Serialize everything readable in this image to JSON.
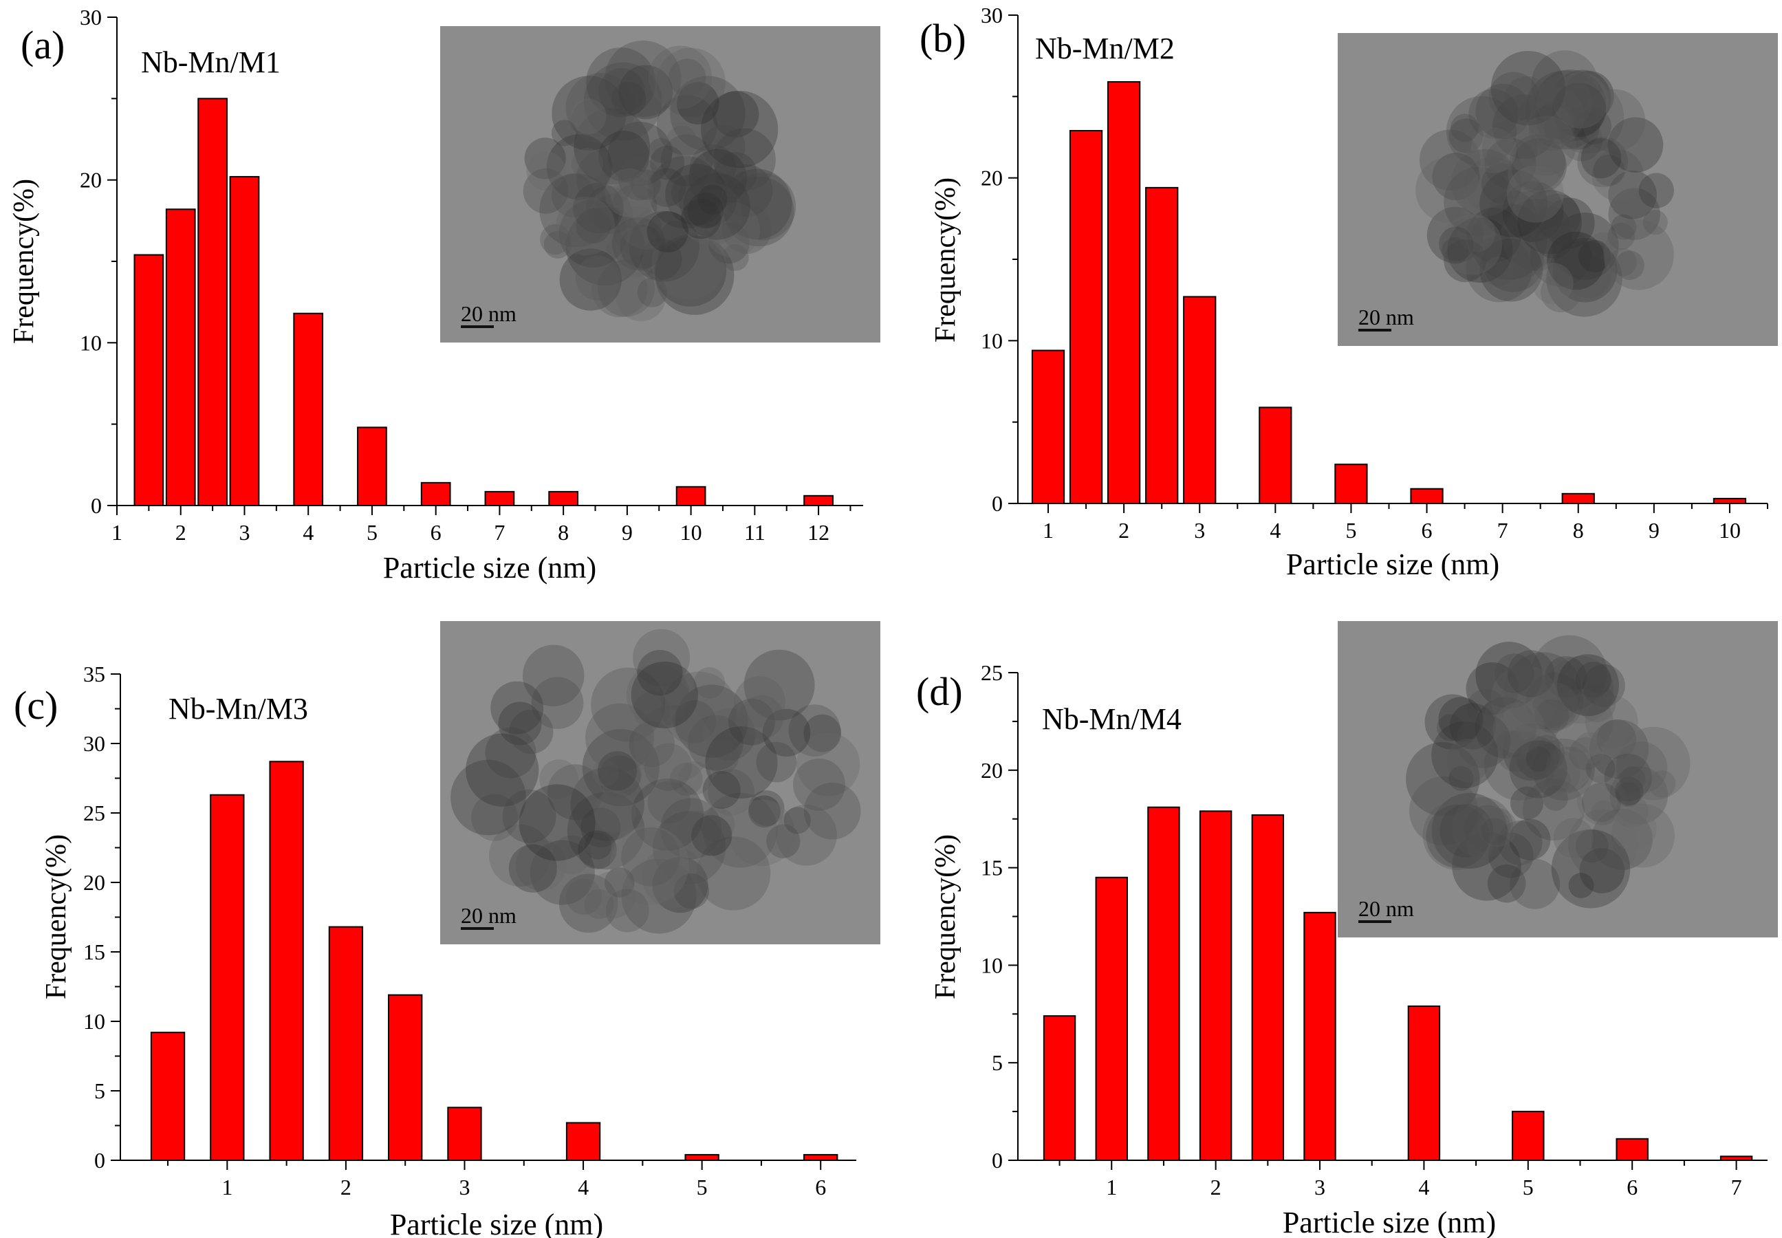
{
  "colors": {
    "bar": "#ff0000",
    "bar_outline": "#000000",
    "tem_background": "#8c8c8c",
    "tem_particle": "#3a3a3a"
  },
  "chart_data": [
    {
      "type": "bar",
      "panel_label": "(a)",
      "sample": "Nb-Mn/M1",
      "xlabel": "Particle size (nm)",
      "ylabel": "Frequency(%)",
      "xlim": [
        1,
        12.7
      ],
      "ylim": [
        0,
        30
      ],
      "xticks": [
        1,
        2,
        3,
        4,
        5,
        6,
        7,
        8,
        9,
        10,
        11,
        12
      ],
      "yticks": [
        0,
        10,
        20,
        30
      ],
      "bar_width": 0.45,
      "x": [
        1.5,
        2.0,
        2.5,
        3.0,
        4.0,
        5.0,
        6.0,
        7.0,
        8.0,
        10.0,
        12.0
      ],
      "values": [
        15.4,
        18.2,
        25.0,
        20.2,
        11.8,
        4.8,
        1.4,
        0.85,
        0.85,
        1.15,
        0.6
      ],
      "inset": {
        "scale_bar": "20 nm"
      }
    },
    {
      "type": "bar",
      "panel_label": "(b)",
      "sample": "Nb-Mn/M2",
      "xlabel": "Particle size (nm)",
      "ylabel": "Frequency(%)",
      "xlim": [
        0.6,
        10.5
      ],
      "ylim": [
        0,
        30
      ],
      "xticks": [
        1,
        2,
        3,
        4,
        5,
        6,
        7,
        8,
        9,
        10
      ],
      "yticks": [
        0,
        10,
        20,
        30
      ],
      "bar_width": 0.42,
      "x": [
        1.0,
        1.5,
        2.0,
        2.5,
        3.0,
        4.0,
        5.0,
        6.0,
        8.0,
        10.0
      ],
      "values": [
        9.4,
        22.9,
        25.9,
        19.4,
        12.7,
        5.9,
        2.4,
        0.9,
        0.6,
        0.3
      ],
      "inset": {
        "scale_bar": "20 nm"
      }
    },
    {
      "type": "bar",
      "panel_label": "(c)",
      "sample": "Nb-Mn/M3",
      "xlabel": "Particle size (nm)",
      "ylabel": "Frequency(%)",
      "xlim": [
        0.1,
        6.3
      ],
      "ylim": [
        0,
        35
      ],
      "xticks": [
        1,
        2,
        3,
        4,
        5,
        6
      ],
      "yticks": [
        0,
        5,
        10,
        15,
        20,
        25,
        30,
        35
      ],
      "bar_width": 0.28,
      "x": [
        0.5,
        1.0,
        1.5,
        2.0,
        2.5,
        3.0,
        4.0,
        5.0,
        6.0
      ],
      "values": [
        9.2,
        26.3,
        28.7,
        16.8,
        11.9,
        3.8,
        2.7,
        0.4,
        0.4
      ],
      "inset": {
        "scale_bar": "20 nm"
      }
    },
    {
      "type": "bar",
      "panel_label": "(d)",
      "sample": "Nb-Mn/M4",
      "xlabel": "Particle size (nm)",
      "ylabel": "Frequency(%)",
      "xlim": [
        0.1,
        7.3
      ],
      "ylim": [
        0,
        25
      ],
      "xticks": [
        1,
        2,
        3,
        4,
        5,
        6,
        7
      ],
      "yticks": [
        0,
        5,
        10,
        15,
        20,
        25
      ],
      "bar_width": 0.3,
      "x": [
        0.5,
        1.0,
        1.5,
        2.0,
        2.5,
        3.0,
        4.0,
        5.0,
        6.0,
        7.0
      ],
      "values": [
        7.4,
        14.5,
        18.1,
        17.9,
        17.7,
        12.7,
        7.9,
        2.5,
        1.1,
        0.2
      ],
      "inset": {
        "scale_bar": "20 nm"
      }
    }
  ]
}
